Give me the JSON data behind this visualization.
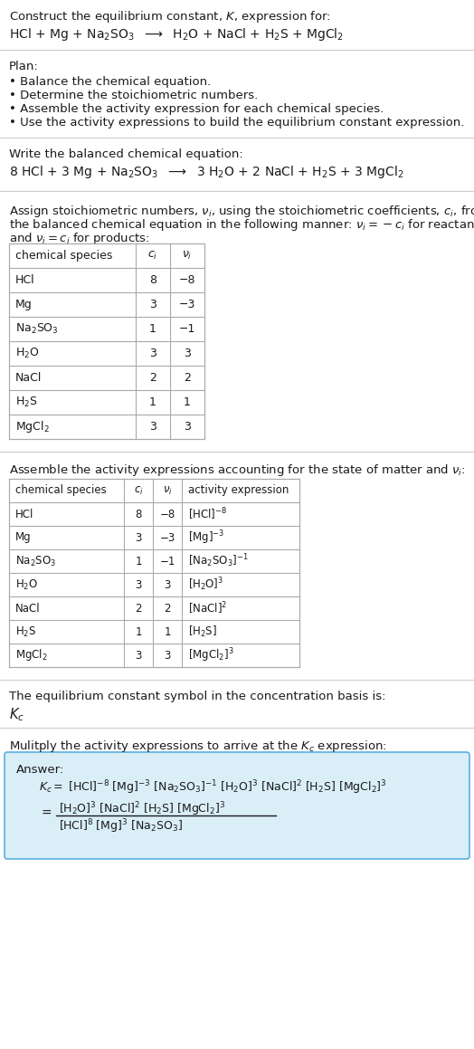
{
  "title_line1": "Construct the equilibrium constant, $K$, expression for:",
  "title_line2": "HCl + Mg + Na$_2$SO$_3$  $\\longrightarrow$  H$_2$O + NaCl + H$_2$S + MgCl$_2$",
  "plan_header": "Plan:",
  "plan_items": [
    "• Balance the chemical equation.",
    "• Determine the stoichiometric numbers.",
    "• Assemble the activity expression for each chemical species.",
    "• Use the activity expressions to build the equilibrium constant expression."
  ],
  "balanced_header": "Write the balanced chemical equation:",
  "balanced_eq": "8 HCl + 3 Mg + Na$_2$SO$_3$  $\\longrightarrow$  3 H$_2$O + 2 NaCl + H$_2$S + 3 MgCl$_2$",
  "stoich_header1": "Assign stoichiometric numbers, $\\nu_i$, using the stoichiometric coefficients, $c_i$, from",
  "stoich_header2": "the balanced chemical equation in the following manner: $\\nu_i = -c_i$ for reactants",
  "stoich_header3": "and $\\nu_i = c_i$ for products:",
  "table1_headers": [
    "chemical species",
    "$c_i$",
    "$\\nu_i$"
  ],
  "table1_data": [
    [
      "HCl",
      "8",
      "−8"
    ],
    [
      "Mg",
      "3",
      "−3"
    ],
    [
      "Na$_2$SO$_3$",
      "1",
      "−1"
    ],
    [
      "H$_2$O",
      "3",
      "3"
    ],
    [
      "NaCl",
      "2",
      "2"
    ],
    [
      "H$_2$S",
      "1",
      "1"
    ],
    [
      "MgCl$_2$",
      "3",
      "3"
    ]
  ],
  "activity_header": "Assemble the activity expressions accounting for the state of matter and $\\nu_i$:",
  "table2_headers": [
    "chemical species",
    "$c_i$",
    "$\\nu_i$",
    "activity expression"
  ],
  "table2_data": [
    [
      "HCl",
      "8",
      "−8",
      "[HCl]$^{-8}$"
    ],
    [
      "Mg",
      "3",
      "−3",
      "[Mg]$^{-3}$"
    ],
    [
      "Na$_2$SO$_3$",
      "1",
      "−1",
      "[Na$_2$SO$_3$]$^{-1}$"
    ],
    [
      "H$_2$O",
      "3",
      "3",
      "[H$_2$O]$^3$"
    ],
    [
      "NaCl",
      "2",
      "2",
      "[NaCl]$^2$"
    ],
    [
      "H$_2$S",
      "1",
      "1",
      "[H$_2$S]"
    ],
    [
      "MgCl$_2$",
      "3",
      "3",
      "[MgCl$_2$]$^3$"
    ]
  ],
  "kc_header": "The equilibrium constant symbol in the concentration basis is:",
  "kc_symbol": "$K_c$",
  "multiply_header": "Mulitply the activity expressions to arrive at the $K_c$ expression:",
  "answer_label": "Answer:",
  "answer_line1": "$K_c = $ [HCl]$^{-8}$ [Mg]$^{-3}$ [Na$_2$SO$_3$]$^{-1}$ [H$_2$O]$^3$ [NaCl]$^2$ [H$_2$S] [MgCl$_2$]$^3$",
  "ans_num": "[H$_2$O]$^3$ [NaCl]$^2$ [H$_2$S] [MgCl$_2$]$^3$",
  "ans_den": "[HCl]$^8$ [Mg]$^3$ [Na$_2$SO$_3$]",
  "bg_color": "#ffffff",
  "text_color": "#1a1a1a",
  "table_line_color": "#aaaaaa",
  "answer_box_facecolor": "#daeef8",
  "answer_box_edgecolor": "#5aafe0"
}
